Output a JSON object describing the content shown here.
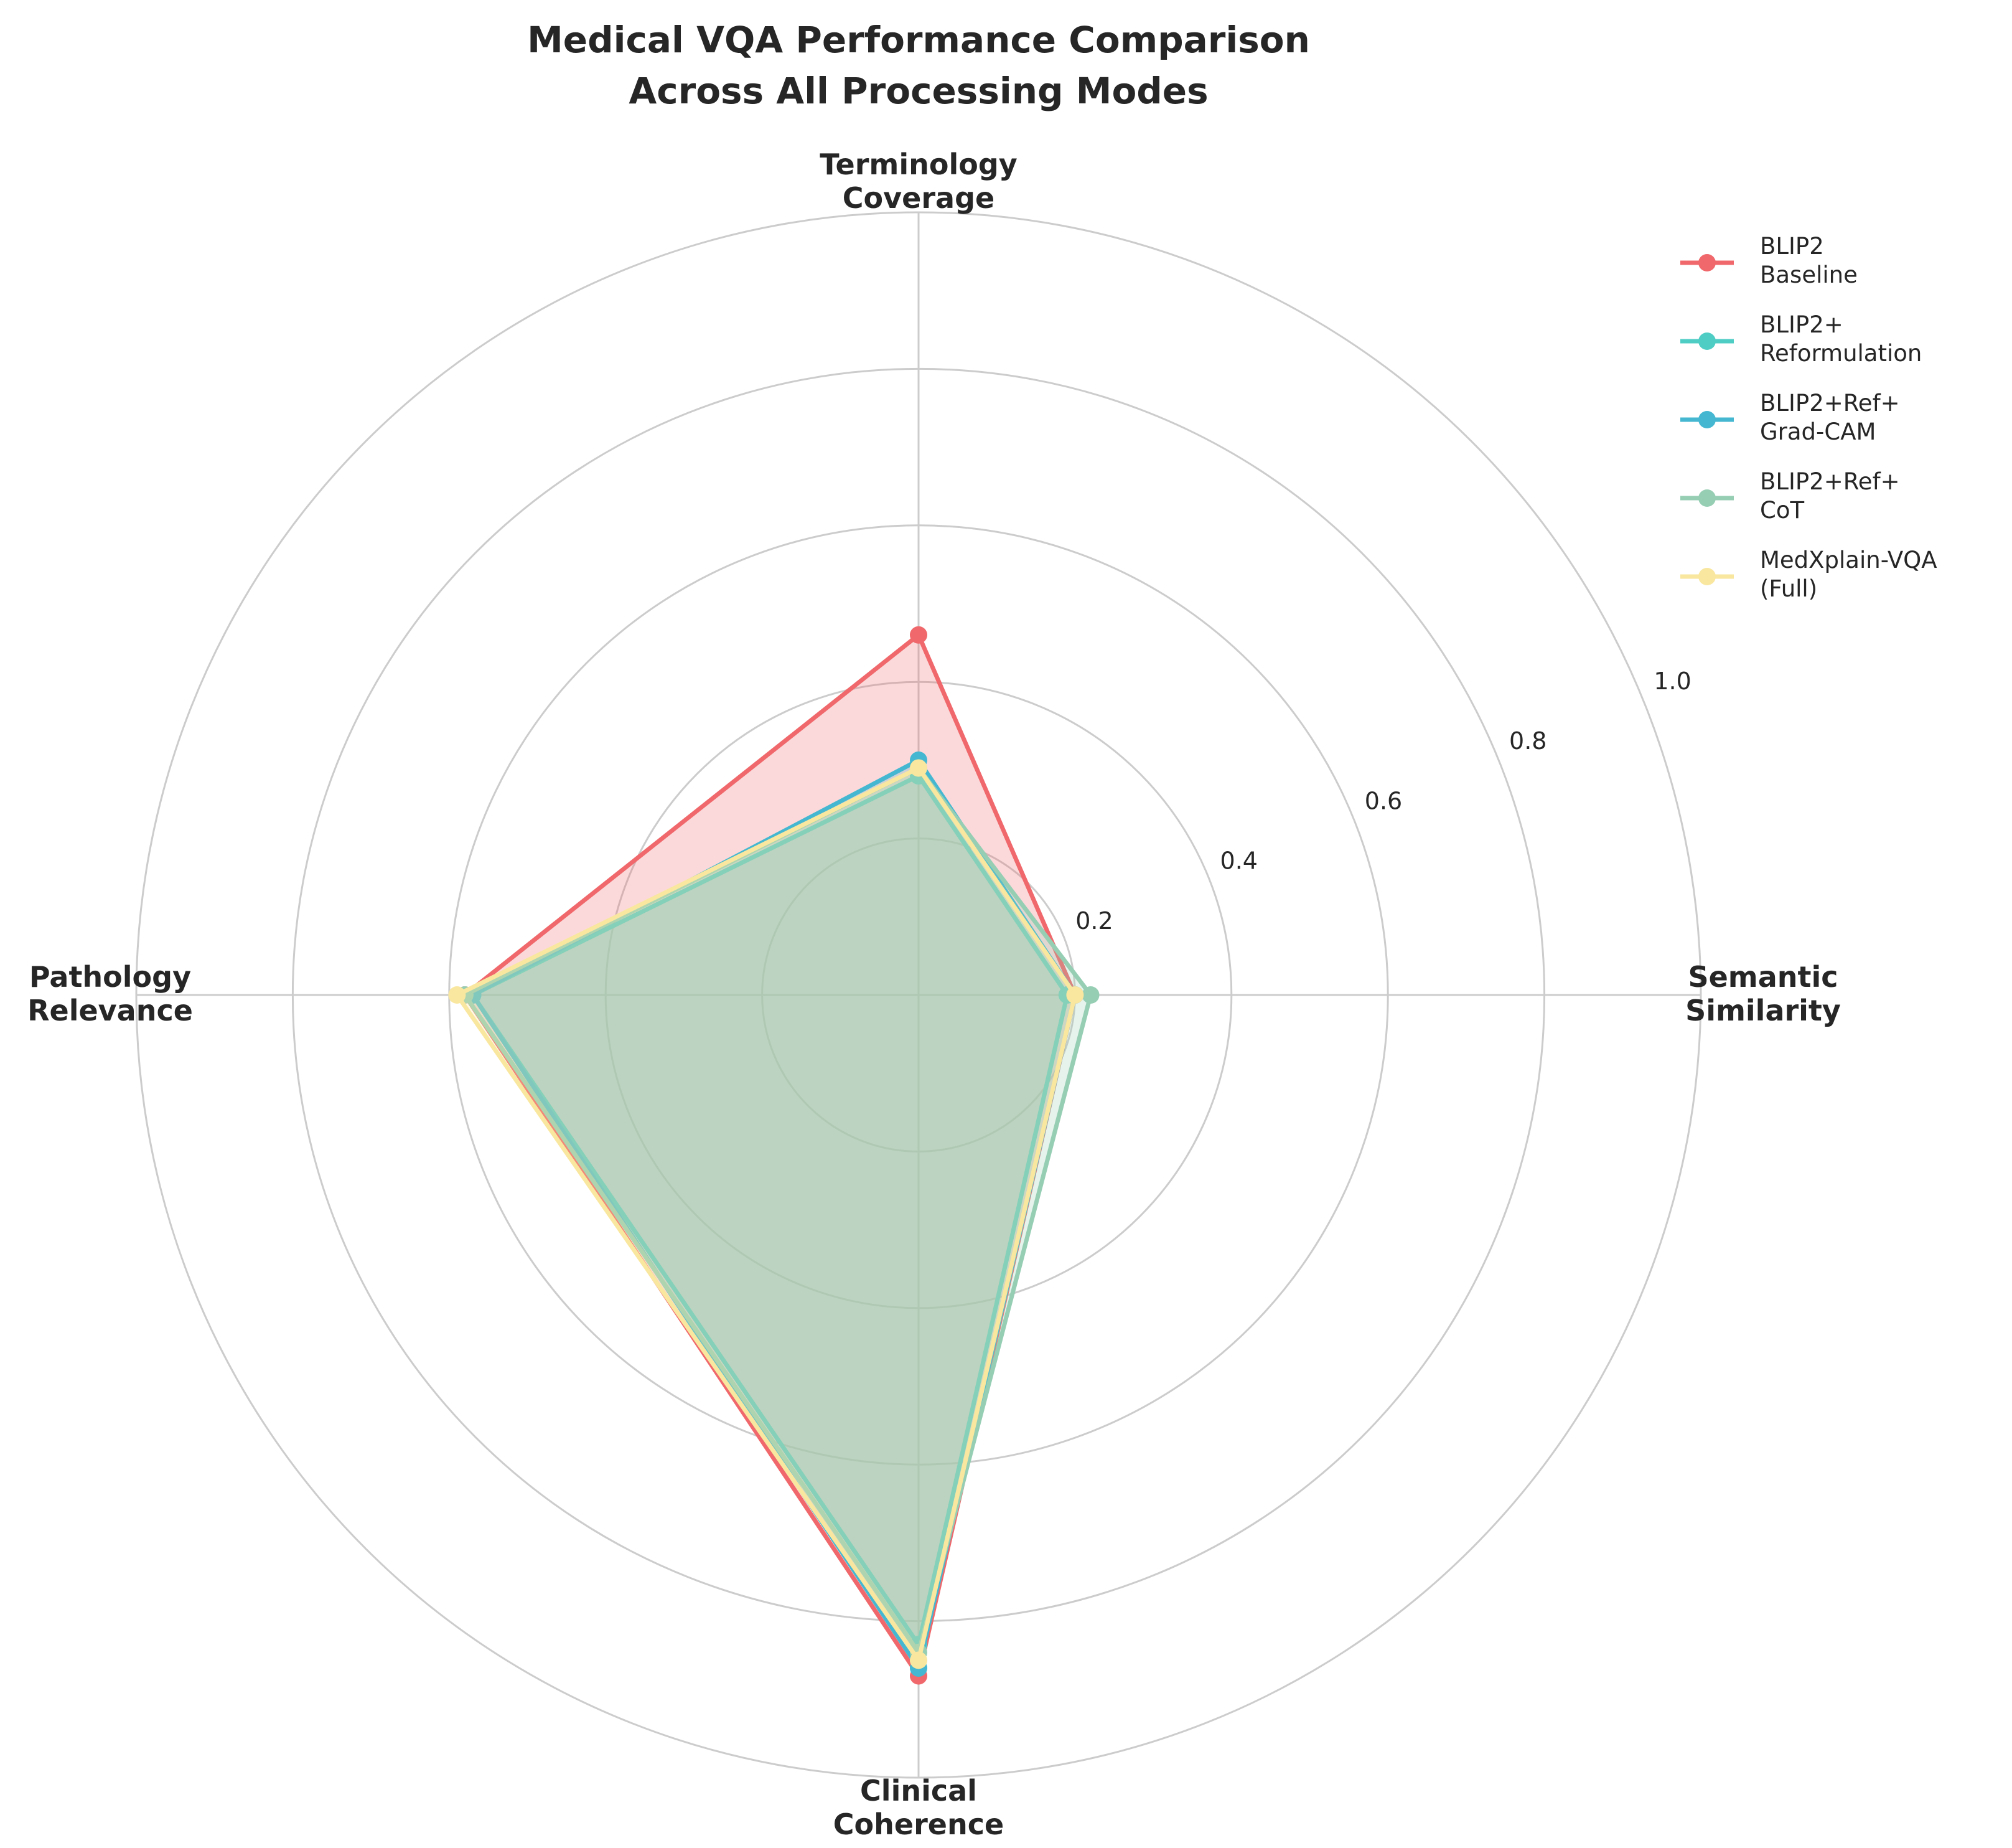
{
  "chart_data": {
    "type": "radar",
    "title": [
      "Medical VQA Performance Comparison",
      "Across All Processing Modes"
    ],
    "axes": [
      {
        "label": [
          "Terminology",
          "Coverage"
        ]
      },
      {
        "label": [
          "Semantic",
          "Similarity"
        ]
      },
      {
        "label": [
          "Clinical",
          "Coherence"
        ]
      },
      {
        "label": [
          "Pathology",
          "Relevance"
        ]
      }
    ],
    "rlim": [
      0,
      1.0
    ],
    "rticks": [
      0.2,
      0.4,
      0.6,
      0.8,
      1.0
    ],
    "rtick_labels": [
      "0.2",
      "0.4",
      "0.6",
      "0.8",
      "1.0"
    ],
    "grid": true,
    "legend_position": "top-right",
    "series": [
      {
        "name": [
          "BLIP2",
          "Baseline"
        ],
        "color": "#f0686b",
        "filled": true,
        "values": [
          0.46,
          0.2,
          0.87,
          0.58
        ]
      },
      {
        "name": [
          "BLIP2+",
          "Reformulation"
        ],
        "color": "#4ecdc4",
        "filled": true,
        "values": [
          0.28,
          0.19,
          0.83,
          0.57
        ]
      },
      {
        "name": [
          "BLIP2+Ref+",
          "Grad-CAM"
        ],
        "color": "#45b7d1",
        "filled": true,
        "values": [
          0.3,
          0.2,
          0.86,
          0.57
        ]
      },
      {
        "name": [
          "BLIP2+Ref+",
          "CoT"
        ],
        "color": "#96ceb4",
        "filled": true,
        "values": [
          0.29,
          0.22,
          0.84,
          0.58
        ]
      },
      {
        "name": [
          "MedXplain-VQA",
          "(Full)"
        ],
        "color": "#f9e79f",
        "filled": true,
        "values": [
          0.29,
          0.2,
          0.85,
          0.59
        ]
      }
    ]
  }
}
